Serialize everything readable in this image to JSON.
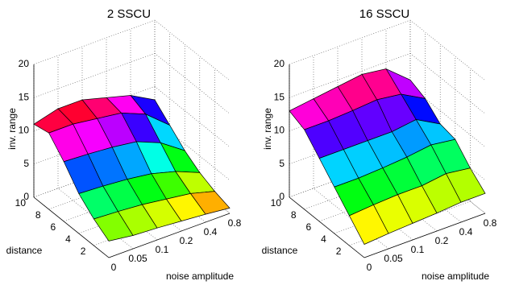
{
  "chart_data": [
    {
      "type": "surface",
      "title": "2 SSCU",
      "xlabel": "noise amplitude",
      "ylabel": "distance",
      "zlabel": "inv. range",
      "x": [
        "0",
        "0.05",
        "0.1",
        "0.2",
        "0.4",
        "0.8"
      ],
      "y": [
        0,
        2,
        4,
        6,
        8,
        10
      ],
      "ylim": [
        0,
        10
      ],
      "yticks": [
        2,
        4,
        6,
        8,
        10
      ],
      "zlim": [
        0,
        20
      ],
      "zticks": [
        0,
        5,
        10,
        15,
        20
      ],
      "grid": true,
      "z": [
        [
          2.5,
          2.0,
          1.8,
          1.5,
          1.2,
          0.8
        ],
        [
          4,
          3.8,
          3.5,
          3,
          2.5,
          1.5
        ],
        [
          6,
          5.8,
          5.5,
          5,
          4,
          2.5
        ],
        [
          9,
          8.8,
          8.5,
          8,
          6.5,
          4
        ],
        [
          11.5,
          11.5,
          11,
          10.5,
          9,
          6
        ],
        [
          11,
          12,
          12,
          11,
          10,
          8
        ]
      ]
    },
    {
      "type": "surface",
      "title": "16 SSCU",
      "xlabel": "noise amplitude",
      "ylabel": "distance",
      "zlabel": "inv. range",
      "x": [
        "0",
        "0.05",
        "0.1",
        "0.2",
        "0.4",
        "0.8"
      ],
      "y": [
        0,
        2,
        4,
        6,
        8,
        10
      ],
      "ylim": [
        0,
        10
      ],
      "yticks": [
        2,
        4,
        6,
        8,
        10
      ],
      "zlim": [
        0,
        20
      ],
      "zticks": [
        0,
        5,
        10,
        15,
        20
      ],
      "grid": true,
      "z": [
        [
          2,
          2.3,
          2.5,
          2.7,
          3,
          3
        ],
        [
          4.5,
          4.8,
          5,
          5,
          5.5,
          5
        ],
        [
          7,
          7,
          7.2,
          7.5,
          8,
          7.5
        ],
        [
          9.5,
          9.5,
          9.5,
          9.5,
          10,
          8
        ],
        [
          12,
          12,
          12.2,
          12.5,
          12,
          10
        ],
        [
          13,
          13.5,
          14,
          14.5,
          14,
          11
        ]
      ]
    }
  ]
}
